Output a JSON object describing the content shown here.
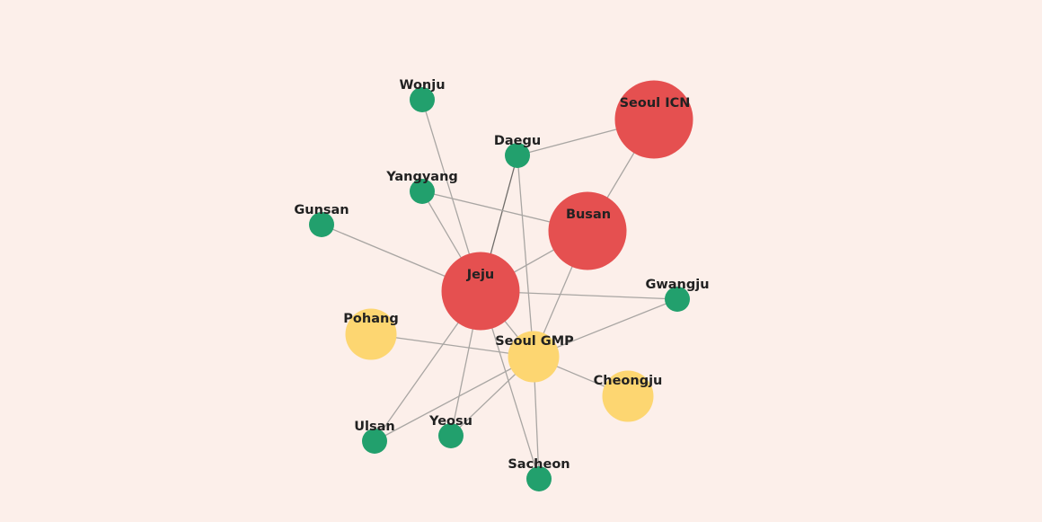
{
  "colors": {
    "background": "#fcefea",
    "edge": "#a9a6a3",
    "tiers": {
      "large": "#e55050",
      "medium": "#fdd671",
      "small": "#22a06d"
    }
  },
  "nodes": [
    {
      "id": "seoul-icn",
      "label": "Seoul ICN",
      "tier": "large"
    },
    {
      "id": "busan",
      "label": "Busan",
      "tier": "large"
    },
    {
      "id": "jeju",
      "label": "Jeju",
      "tier": "large"
    },
    {
      "id": "seoul-gmp",
      "label": "Seoul GMP",
      "tier": "medium"
    },
    {
      "id": "pohang",
      "label": "Pohang",
      "tier": "medium"
    },
    {
      "id": "cheongju",
      "label": "Cheongju",
      "tier": "medium"
    },
    {
      "id": "wonju",
      "label": "Wonju",
      "tier": "small"
    },
    {
      "id": "daegu",
      "label": "Daegu",
      "tier": "small"
    },
    {
      "id": "yangyang",
      "label": "Yangyang",
      "tier": "small"
    },
    {
      "id": "gunsan",
      "label": "Gunsan",
      "tier": "small"
    },
    {
      "id": "gwangju",
      "label": "Gwangju",
      "tier": "small"
    },
    {
      "id": "ulsan",
      "label": "Ulsan",
      "tier": "small"
    },
    {
      "id": "yeosu",
      "label": "Yeosu",
      "tier": "small"
    },
    {
      "id": "sacheon",
      "label": "Sacheon",
      "tier": "small"
    }
  ],
  "edges": [
    [
      "seoul-icn",
      "daegu"
    ],
    [
      "seoul-icn",
      "busan"
    ],
    [
      "wonju",
      "jeju"
    ],
    [
      "daegu",
      "jeju"
    ],
    [
      "daegu",
      "seoul-gmp"
    ],
    [
      "yangyang",
      "busan"
    ],
    [
      "yangyang",
      "jeju"
    ],
    [
      "gunsan",
      "jeju"
    ],
    [
      "busan",
      "jeju"
    ],
    [
      "busan",
      "seoul-gmp"
    ],
    [
      "jeju",
      "gwangju"
    ],
    [
      "jeju",
      "seoul-gmp"
    ],
    [
      "jeju",
      "ulsan"
    ],
    [
      "jeju",
      "yeosu"
    ],
    [
      "jeju",
      "sacheon"
    ],
    [
      "gwangju",
      "seoul-gmp"
    ],
    [
      "pohang",
      "seoul-gmp"
    ],
    [
      "seoul-gmp",
      "cheongju"
    ],
    [
      "seoul-gmp",
      "ulsan"
    ],
    [
      "seoul-gmp",
      "yeosu"
    ],
    [
      "seoul-gmp",
      "sacheon"
    ]
  ]
}
